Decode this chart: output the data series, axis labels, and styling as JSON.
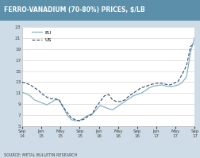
{
  "title": "FERRO-VANADIUM (70-80%) PRICES, $/LB",
  "source": "SOURCE: METAL BULLETIN RESEARCH",
  "background_color": "#cddce6",
  "plot_background": "#ffffff",
  "title_bg": "#5b8faa",
  "title_color": "white",
  "ylim": [
    5,
    23
  ],
  "yticks": [
    5,
    7,
    9,
    11,
    13,
    15,
    17,
    19,
    21,
    23
  ],
  "xtick_labels": [
    "Sep\n14",
    "Jan\n15",
    "May\n15",
    "Sep\n15",
    "Jan\n16",
    "May\n16",
    "Sep\n16",
    "Jan\n17",
    "May\n17",
    "Sep\n17"
  ],
  "eu_color": "#8ab0c8",
  "us_color": "#2d4b6e",
  "eu_data": [
    11.2,
    10.9,
    10.5,
    9.8,
    9.5,
    9.2,
    8.9,
    9.3,
    9.8,
    9.8,
    8.5,
    7.0,
    6.2,
    6.0,
    6.1,
    6.5,
    7.0,
    7.2,
    8.0,
    8.8,
    8.5,
    8.2,
    8.0,
    8.5,
    9.0,
    9.5,
    10.0,
    10.5,
    10.8,
    11.0,
    11.5,
    12.0,
    12.3,
    12.4,
    12.5,
    12.3,
    12.2,
    12.3,
    12.5,
    13.0,
    14.0,
    18.5,
    21.2
  ],
  "us_data": [
    13.0,
    12.8,
    12.5,
    12.0,
    11.5,
    10.8,
    10.3,
    10.0,
    10.0,
    9.8,
    8.5,
    7.5,
    6.5,
    6.2,
    6.0,
    6.3,
    6.8,
    7.2,
    8.5,
    9.5,
    10.5,
    10.8,
    9.8,
    9.5,
    9.5,
    9.8,
    10.5,
    11.0,
    11.5,
    12.0,
    12.2,
    12.5,
    12.7,
    12.8,
    12.8,
    12.6,
    12.5,
    12.8,
    13.2,
    14.5,
    16.0,
    19.5,
    20.0
  ],
  "legend_eu": "EU",
  "legend_us": "US"
}
